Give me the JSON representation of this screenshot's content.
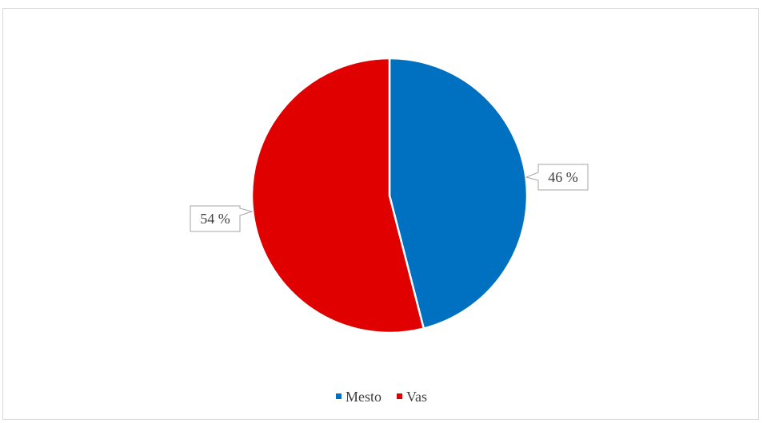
{
  "chart_data": {
    "type": "pie",
    "title": "",
    "slices": [
      {
        "label": "Mesto",
        "value": 46,
        "display": "46 %",
        "color": "#0070c0"
      },
      {
        "label": "Vas",
        "value": 54,
        "display": "54 %",
        "color": "#e00000"
      }
    ],
    "legend_position": "bottom",
    "start_angle_deg": 0,
    "direction": "clockwise"
  }
}
